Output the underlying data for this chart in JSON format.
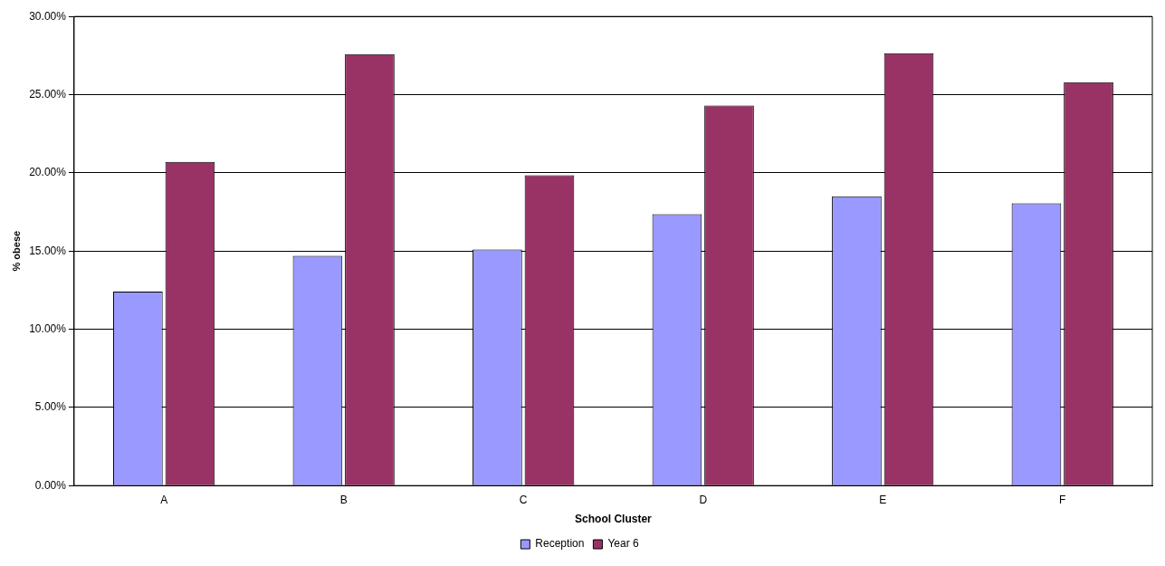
{
  "chart_data": {
    "type": "bar",
    "xlabel": "School Cluster",
    "ylabel": "% obese",
    "categories": [
      "A",
      "B",
      "C",
      "D",
      "E",
      "F"
    ],
    "series": [
      {
        "name": "Reception",
        "color": "#9999ff",
        "values": [
          12.4,
          14.7,
          15.1,
          17.35,
          18.5,
          18.05
        ]
      },
      {
        "name": "Year 6",
        "color": "#993366",
        "values": [
          20.7,
          27.6,
          19.85,
          24.3,
          27.65,
          25.8
        ]
      }
    ],
    "ylim": [
      0,
      30
    ],
    "yticks": [
      {
        "value": 0,
        "label": "0.00%"
      },
      {
        "value": 5,
        "label": "5.00%"
      },
      {
        "value": 10,
        "label": "10.00%"
      },
      {
        "value": 15,
        "label": "15.00%"
      },
      {
        "value": 20,
        "label": "20.00%"
      },
      {
        "value": 25,
        "label": "25.00%"
      },
      {
        "value": 30,
        "label": "30.00%"
      }
    ],
    "grid": "y",
    "legend": "bottom"
  }
}
